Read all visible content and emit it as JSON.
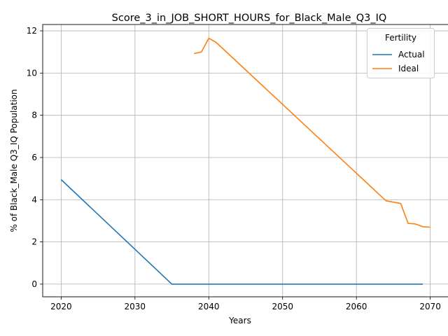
{
  "chart_data": {
    "type": "line",
    "title": "Score_3_in_JOB_SHORT_HOURS_for_Black_Male_Q3_IQ",
    "xlabel": "Years",
    "ylabel": "% of Black_Male Q3_IQ Population",
    "xlim": [
      2017.5,
      2072.5
    ],
    "ylim": [
      -0.6,
      12.3
    ],
    "x_ticks": [
      2020,
      2030,
      2040,
      2050,
      2060,
      2070
    ],
    "y_ticks": [
      0,
      2,
      4,
      6,
      8,
      10,
      12
    ],
    "grid": true,
    "legend": {
      "title": "Fertility",
      "placement": "top-right"
    },
    "series": [
      {
        "name": "Actual",
        "color": "#1f77b4",
        "x": [
          2020,
          2035,
          2069
        ],
        "y": [
          4.95,
          0.0,
          0.0
        ]
      },
      {
        "name": "Ideal",
        "color": "#ff7f0e",
        "x": [
          2038,
          2039,
          2040,
          2041,
          2064,
          2066,
          2067,
          2068,
          2069,
          2070
        ],
        "y": [
          10.92,
          11.0,
          11.65,
          11.45,
          3.95,
          3.82,
          2.88,
          2.85,
          2.72,
          2.7
        ]
      }
    ]
  }
}
